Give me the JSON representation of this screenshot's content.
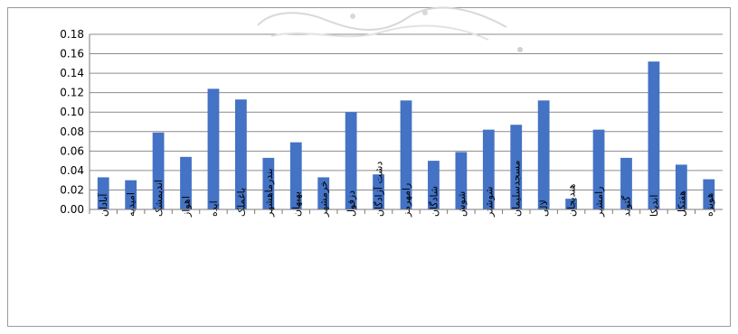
{
  "chart_data": {
    "type": "bar",
    "title": "",
    "xlabel": "",
    "ylabel": "",
    "ylim": [
      0,
      0.18
    ],
    "yticks": [
      "0.18",
      "0.16",
      "0.14",
      "0.12",
      "0.10",
      "0.08",
      "0.06",
      "0.04",
      "0.02",
      "0.00"
    ],
    "grid": true,
    "legend": "none",
    "bar_color": "#4472C4",
    "categories": [
      "آبادان",
      "امیدیه",
      "اندیمشک",
      "اهواز",
      "ایذه",
      "باغملک",
      "بندرماهشهر",
      "بهبهان",
      "خرمشهر",
      "دزفول",
      "دشت آزادگان",
      "رامهرمز",
      "شادگان",
      "شوش",
      "شوشتر",
      "مسجدسلیمان",
      "لالی",
      "هندیجان",
      "رامشیر",
      "گتوند",
      "اندیکا",
      "هفتکل",
      "هویزه"
    ],
    "values": [
      0.033,
      0.03,
      0.079,
      0.054,
      0.124,
      0.113,
      0.053,
      0.069,
      0.033,
      0.1,
      0.036,
      0.112,
      0.05,
      0.059,
      0.082,
      0.087,
      0.112,
      0.011,
      0.082,
      0.053,
      0.152,
      0.046,
      0.031
    ]
  }
}
